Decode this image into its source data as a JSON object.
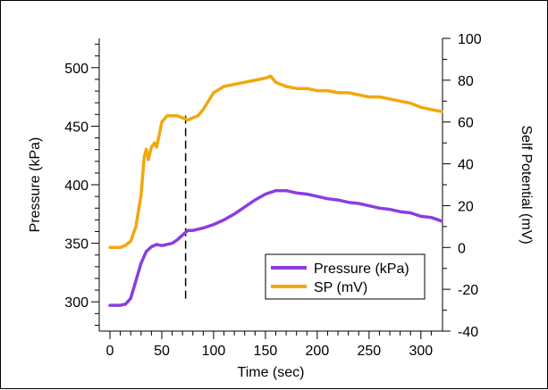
{
  "chart_data": {
    "type": "line",
    "title": "",
    "xlabel": "Time (sec)",
    "ylabel_left": "Pressure (kPa)",
    "ylabel_right": "Self Potential (mV)",
    "xlim": [
      0,
      320
    ],
    "ylim_left": [
      275,
      525
    ],
    "ylim_right": [
      -40,
      100
    ],
    "x_ticks": [
      0,
      50,
      100,
      150,
      200,
      250,
      300
    ],
    "y_left_ticks": [
      300,
      350,
      400,
      450,
      500
    ],
    "y_right_ticks": [
      -40,
      -20,
      0,
      20,
      40,
      60,
      80,
      100
    ],
    "grid": false,
    "legend_position": "bottom-right",
    "marker_line_x": 73,
    "series": [
      {
        "name": "Pressure (kPa)",
        "axis": "left",
        "color": "#8a3ee0",
        "x": [
          0,
          5,
          10,
          15,
          20,
          25,
          30,
          35,
          40,
          45,
          50,
          55,
          60,
          65,
          70,
          75,
          80,
          90,
          100,
          110,
          120,
          130,
          140,
          150,
          160,
          170,
          180,
          190,
          200,
          210,
          220,
          230,
          240,
          250,
          260,
          270,
          280,
          290,
          300,
          310,
          320
        ],
        "values": [
          297,
          297,
          297,
          298,
          303,
          318,
          333,
          343,
          347,
          349,
          348,
          349,
          350,
          353,
          357,
          361,
          361,
          363,
          366,
          370,
          375,
          381,
          387,
          392,
          395,
          395,
          393,
          392,
          390,
          388,
          387,
          385,
          384,
          382,
          380,
          379,
          377,
          376,
          373,
          372,
          369
        ]
      },
      {
        "name": "SP (mV)",
        "axis": "right",
        "color": "#f2a80c",
        "x": [
          0,
          10,
          15,
          20,
          25,
          30,
          33,
          35,
          37,
          40,
          43,
          45,
          48,
          50,
          55,
          60,
          65,
          70,
          75,
          80,
          85,
          90,
          95,
          100,
          110,
          120,
          130,
          140,
          150,
          155,
          160,
          170,
          180,
          190,
          200,
          210,
          220,
          230,
          240,
          250,
          260,
          270,
          280,
          290,
          300,
          310,
          320
        ],
        "values": [
          0,
          0,
          1,
          3,
          10,
          25,
          43,
          47,
          42,
          48,
          50,
          48,
          55,
          60,
          63,
          63,
          63,
          62,
          61,
          62,
          63,
          66,
          70,
          74,
          77,
          78,
          79,
          80,
          81,
          82,
          79,
          77,
          76,
          76,
          75,
          75,
          74,
          74,
          73,
          72,
          72,
          71,
          70,
          69,
          67,
          66,
          65
        ]
      }
    ]
  }
}
